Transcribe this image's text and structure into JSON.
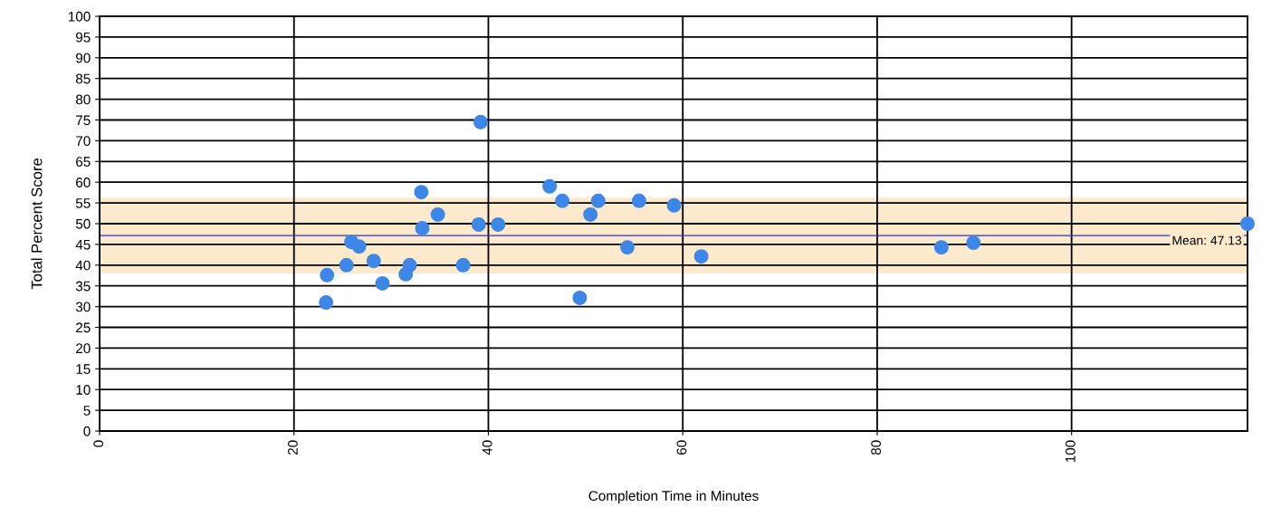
{
  "chart_data": {
    "type": "scatter",
    "xlabel": "Completion Time in Minutes",
    "ylabel": "Total Percent Score",
    "x": [
      23.4,
      23.3,
      25.4,
      25.9,
      26.7,
      28.2,
      29.1,
      31.5,
      31.9,
      33.1,
      33.2,
      34.8,
      37.4,
      39.0,
      39.2,
      41.0,
      46.3,
      47.6,
      49.4,
      50.5,
      51.3,
      54.3,
      55.5,
      59.1,
      61.9,
      86.6,
      89.9,
      118.1
    ],
    "series": [
      {
        "color": "#3d87e8",
        "values": [
          37.6,
          31.0,
          40.0,
          45.6,
          44.5,
          41.0,
          35.6,
          37.8,
          40.0,
          57.6,
          48.9,
          52.2,
          40.0,
          49.8,
          74.5,
          49.8,
          59.0,
          55.5,
          32.1,
          52.2,
          55.5,
          44.3,
          55.5,
          54.4,
          42.1,
          44.3,
          45.4,
          50.0
        ]
      }
    ],
    "xlim": [
      0,
      118.1
    ],
    "xticks": [
      0,
      20,
      40,
      60,
      80,
      100
    ],
    "ylim": [
      0,
      100
    ],
    "yticks": [
      0,
      5,
      10,
      15,
      20,
      25,
      30,
      35,
      40,
      45,
      50,
      55,
      60,
      65,
      70,
      75,
      80,
      85,
      90,
      95,
      100
    ],
    "ref_lines": [
      {
        "axis": "y",
        "value": 47.13,
        "label": "Mean: 47.13",
        "color": "#3333cc"
      }
    ],
    "bands": [
      {
        "axis": "y",
        "from": 38.0,
        "to": 56.3,
        "color": "#fde9cc"
      }
    ],
    "grid": true,
    "marker": "circle",
    "legend": false
  }
}
